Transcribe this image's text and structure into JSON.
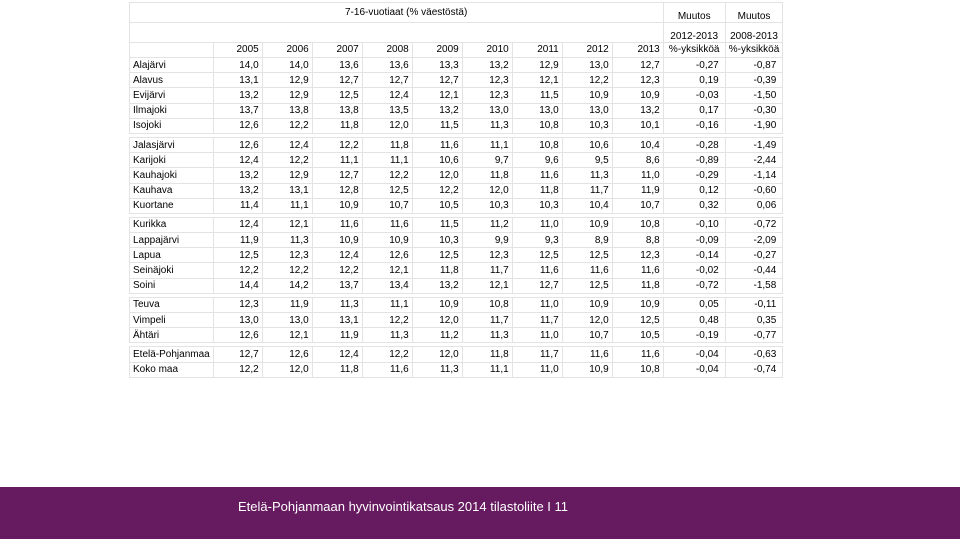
{
  "table": {
    "title": "7-16-vuotiaat (% väestöstä)",
    "muutos_label": "Muutos",
    "change_col1_period": "2012-2013",
    "change_col2_period": "2008-2013",
    "unit_label": "%-yksikköä",
    "years": [
      "2005",
      "2006",
      "2007",
      "2008",
      "2009",
      "2010",
      "2011",
      "2012",
      "2013"
    ],
    "rows": [
      {
        "name": "Alajärvi",
        "values": [
          "14,0",
          "14,0",
          "13,6",
          "13,6",
          "13,3",
          "13,2",
          "12,9",
          "13,0",
          "12,7"
        ],
        "change1": "-0,27",
        "change2": "-0,87"
      },
      {
        "name": "Alavus",
        "values": [
          "13,1",
          "12,9",
          "12,7",
          "12,7",
          "12,7",
          "12,3",
          "12,1",
          "12,2",
          "12,3"
        ],
        "change1": "0,19",
        "change2": "-0,39"
      },
      {
        "name": "Evijärvi",
        "values": [
          "13,2",
          "12,9",
          "12,5",
          "12,4",
          "12,1",
          "12,3",
          "11,5",
          "10,9",
          "10,9"
        ],
        "change1": "-0,03",
        "change2": "-1,50"
      },
      {
        "name": "Ilmajoki",
        "values": [
          "13,7",
          "13,8",
          "13,8",
          "13,5",
          "13,2",
          "13,0",
          "13,0",
          "13,0",
          "13,2"
        ],
        "change1": "0,17",
        "change2": "-0,30"
      },
      {
        "name": "Isojoki",
        "values": [
          "12,6",
          "12,2",
          "11,8",
          "12,0",
          "11,5",
          "11,3",
          "10,8",
          "10,3",
          "10,1"
        ],
        "change1": "-0,16",
        "change2": "-1,90"
      },
      {
        "name": "Jalasjärvi",
        "values": [
          "12,6",
          "12,4",
          "12,2",
          "11,8",
          "11,6",
          "11,1",
          "10,8",
          "10,6",
          "10,4"
        ],
        "change1": "-0,28",
        "change2": "-1,49"
      },
      {
        "name": "Karijoki",
        "values": [
          "12,4",
          "12,2",
          "11,1",
          "11,1",
          "10,6",
          "9,7",
          "9,6",
          "9,5",
          "8,6"
        ],
        "change1": "-0,89",
        "change2": "-2,44"
      },
      {
        "name": "Kauhajoki",
        "values": [
          "13,2",
          "12,9",
          "12,7",
          "12,2",
          "12,0",
          "11,8",
          "11,6",
          "11,3",
          "11,0"
        ],
        "change1": "-0,29",
        "change2": "-1,14"
      },
      {
        "name": "Kauhava",
        "values": [
          "13,2",
          "13,1",
          "12,8",
          "12,5",
          "12,2",
          "12,0",
          "11,8",
          "11,7",
          "11,9"
        ],
        "change1": "0,12",
        "change2": "-0,60"
      },
      {
        "name": "Kuortane",
        "values": [
          "11,4",
          "11,1",
          "10,9",
          "10,7",
          "10,5",
          "10,3",
          "10,3",
          "10,4",
          "10,7"
        ],
        "change1": "0,32",
        "change2": "0,06"
      },
      {
        "name": "Kurikka",
        "values": [
          "12,4",
          "12,1",
          "11,6",
          "11,6",
          "11,5",
          "11,2",
          "11,0",
          "10,9",
          "10,8"
        ],
        "change1": "-0,10",
        "change2": "-0,72"
      },
      {
        "name": "Lappajärvi",
        "values": [
          "11,9",
          "11,3",
          "10,9",
          "10,9",
          "10,3",
          "9,9",
          "9,3",
          "8,9",
          "8,8"
        ],
        "change1": "-0,09",
        "change2": "-2,09"
      },
      {
        "name": "Lapua",
        "values": [
          "12,5",
          "12,3",
          "12,4",
          "12,6",
          "12,5",
          "12,3",
          "12,5",
          "12,5",
          "12,3"
        ],
        "change1": "-0,14",
        "change2": "-0,27"
      },
      {
        "name": "Seinäjoki",
        "values": [
          "12,2",
          "12,2",
          "12,2",
          "12,1",
          "11,8",
          "11,7",
          "11,6",
          "11,6",
          "11,6"
        ],
        "change1": "-0,02",
        "change2": "-0,44"
      },
      {
        "name": "Soini",
        "values": [
          "14,4",
          "14,2",
          "13,7",
          "13,4",
          "13,2",
          "12,1",
          "12,7",
          "12,5",
          "11,8"
        ],
        "change1": "-0,72",
        "change2": "-1,58"
      },
      {
        "name": "Teuva",
        "values": [
          "12,3",
          "11,9",
          "11,3",
          "11,1",
          "10,9",
          "10,8",
          "11,0",
          "10,9",
          "10,9"
        ],
        "change1": "0,05",
        "change2": "-0,11"
      },
      {
        "name": "Vimpeli",
        "values": [
          "13,0",
          "13,0",
          "13,1",
          "12,2",
          "12,0",
          "11,7",
          "11,7",
          "12,0",
          "12,5"
        ],
        "change1": "0,48",
        "change2": "0,35"
      },
      {
        "name": "Ähtäri",
        "values": [
          "12,6",
          "12,1",
          "11,9",
          "11,3",
          "11,2",
          "11,3",
          "11,0",
          "10,7",
          "10,5"
        ],
        "change1": "-0,19",
        "change2": "-0,77"
      },
      {
        "name": "Etelä-Pohjanmaa",
        "values": [
          "12,7",
          "12,6",
          "12,4",
          "12,2",
          "12,0",
          "11,8",
          "11,7",
          "11,6",
          "11,6"
        ],
        "change1": "-0,04",
        "change2": "-0,63"
      },
      {
        "name": "Koko maa",
        "values": [
          "12,2",
          "12,0",
          "11,8",
          "11,6",
          "11,3",
          "11,1",
          "11,0",
          "10,9",
          "10,8"
        ],
        "change1": "-0,04",
        "change2": "-0,74"
      }
    ]
  },
  "footer": {
    "text": "Etelä-Pohjanmaan hyvinvointikatsaus 2014  tilastoliite I 11",
    "background": "#661a5f"
  }
}
